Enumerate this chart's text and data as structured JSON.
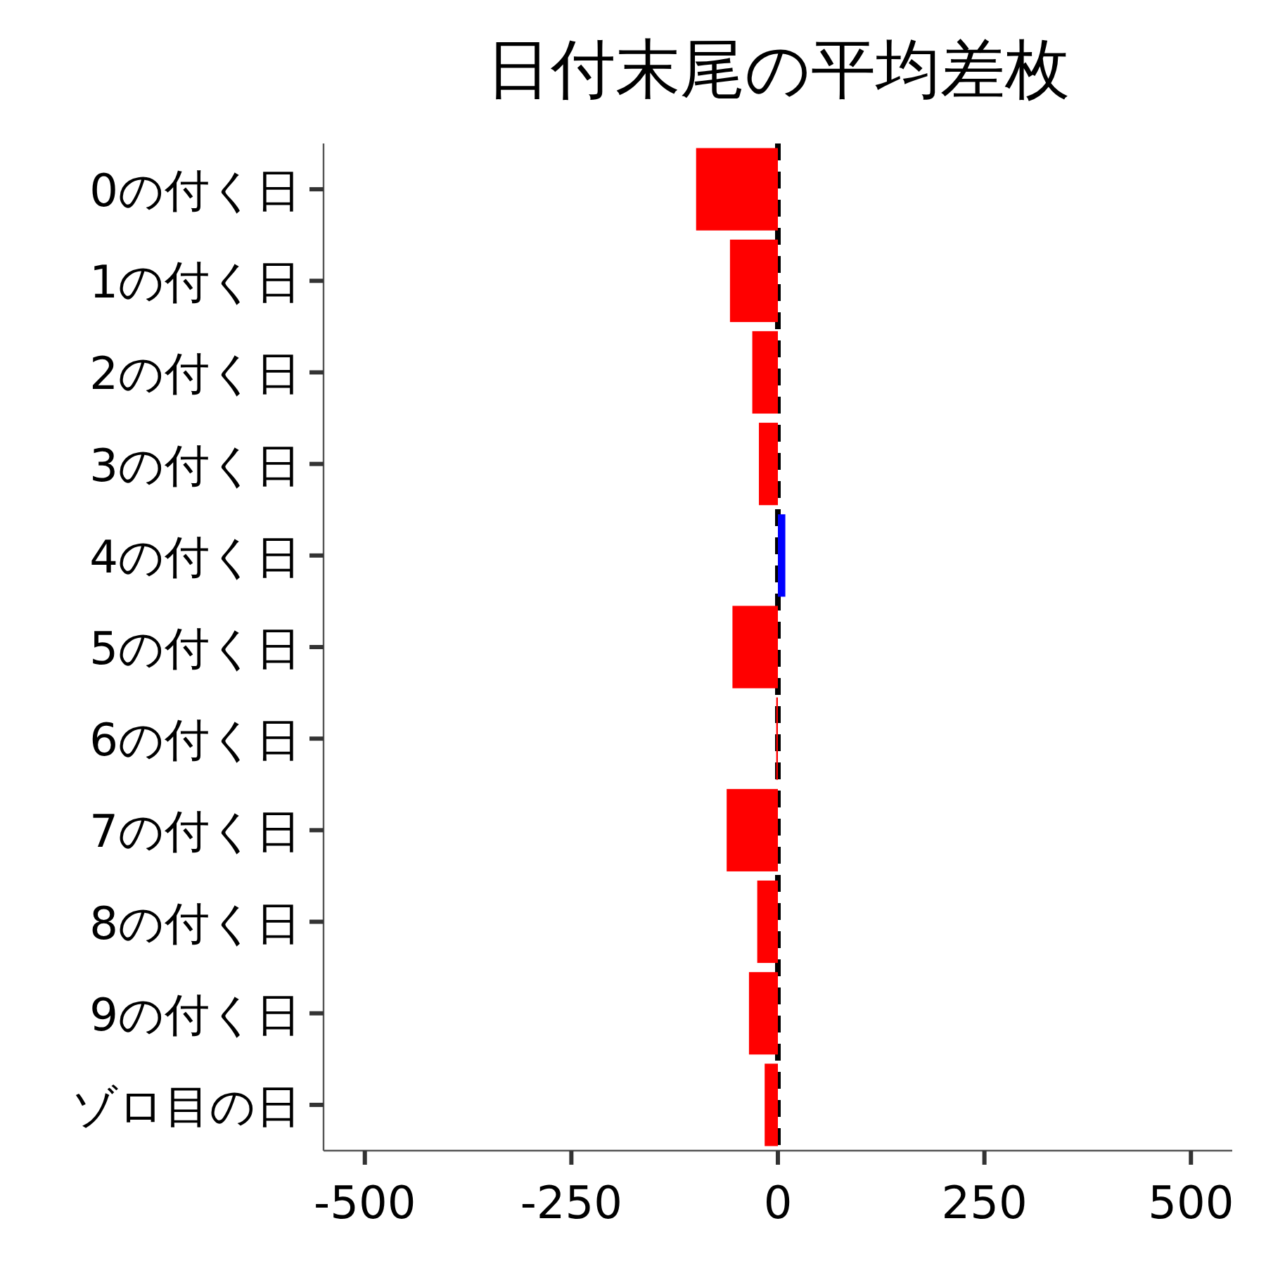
{
  "chart_data": {
    "type": "bar",
    "orientation": "horizontal",
    "title": "日付末尾の平均差枚",
    "categories": [
      "0の付く日",
      "1の付く日",
      "2の付く日",
      "3の付く日",
      "4の付く日",
      "5の付く日",
      "6の付く日",
      "7の付く日",
      "8の付く日",
      "9の付く日",
      "ゾロ目の日"
    ],
    "values": [
      -99,
      -58,
      -31,
      -23,
      9,
      -55,
      -2,
      -62,
      -25,
      -35,
      -16
    ],
    "colors": [
      "#ff0000",
      "#ff0000",
      "#ff0000",
      "#ff0000",
      "#0000ff",
      "#ff0000",
      "#ff0000",
      "#ff0000",
      "#ff0000",
      "#ff0000",
      "#ff0000"
    ],
    "xlim": [
      -550,
      550
    ],
    "xticks": [
      -500,
      -250,
      0,
      250,
      500
    ],
    "grid": false,
    "ref_lines": [
      {
        "axis": "x",
        "value": 0,
        "color": "#000000",
        "line_style": "dashed"
      }
    ]
  }
}
